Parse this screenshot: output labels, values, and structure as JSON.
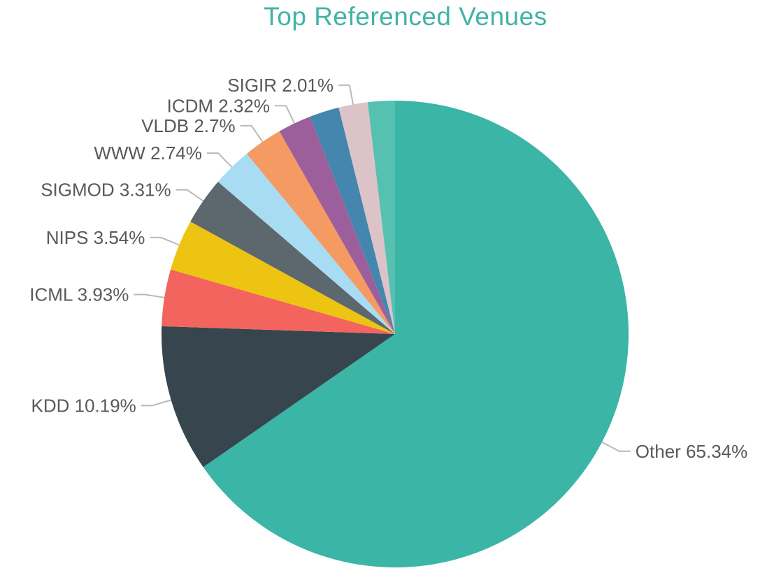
{
  "chart_data": {
    "type": "pie",
    "title": "Top Referenced Venues",
    "legend": "none",
    "grid": "off",
    "label_style": "outside-with-leader-lines",
    "start_angle": "12-o'clock, clockwise",
    "slices": [
      {
        "id": "other",
        "name": "Other",
        "value": 65.34,
        "display": "Other 65.34%",
        "color": "#3bb5a6",
        "show_label": true
      },
      {
        "id": "kdd",
        "name": "KDD",
        "value": 10.19,
        "display": "KDD 10.19%",
        "color": "#37454e",
        "show_label": true
      },
      {
        "id": "icml",
        "name": "ICML",
        "value": 3.93,
        "display": "ICML 3.93%",
        "color": "#f4645e",
        "show_label": true
      },
      {
        "id": "nips",
        "name": "NIPS",
        "value": 3.54,
        "display": "NIPS 3.54%",
        "color": "#ecc411",
        "show_label": true
      },
      {
        "id": "sigmod",
        "name": "SIGMOD",
        "value": 3.31,
        "display": "SIGMOD 3.31%",
        "color": "#5c686e",
        "show_label": true
      },
      {
        "id": "www",
        "name": "WWW",
        "value": 2.74,
        "display": "WWW 2.74%",
        "color": "#a8dcf3",
        "show_label": true
      },
      {
        "id": "vldb",
        "name": "VLDB",
        "value": 2.7,
        "display": "VLDB 2.7%",
        "color": "#f49a62",
        "show_label": true
      },
      {
        "id": "icdm",
        "name": "ICDM",
        "value": 2.32,
        "display": "ICDM 2.32%",
        "color": "#9c5f9b",
        "show_label": true
      },
      {
        "id": "unlabeled-1",
        "name": "",
        "value": 2.05,
        "display": "",
        "color": "#4586ae",
        "show_label": false,
        "value_estimated": true
      },
      {
        "id": "sigir",
        "name": "SIGIR",
        "value": 2.01,
        "display": "SIGIR 2.01%",
        "color": "#dcc3c7",
        "show_label": true
      },
      {
        "id": "unlabeled-2",
        "name": "",
        "value": 1.87,
        "display": "",
        "color": "#56c1b1",
        "show_label": false,
        "value_estimated": true
      }
    ],
    "colors": {
      "title": "#41b3a7",
      "label_text": "#58595b",
      "leader_line": "#b9b9b9",
      "background": "#ffffff"
    }
  }
}
